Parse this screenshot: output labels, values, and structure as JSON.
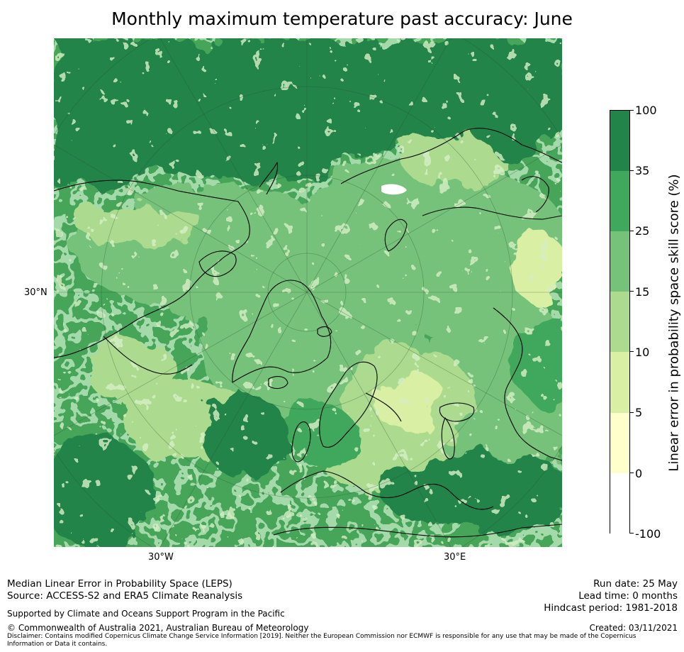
{
  "title": "Monthly maximum temperature past accuracy: June",
  "map": {
    "lat_label": "30°N",
    "lon_labels": [
      "30°W",
      "30°E"
    ]
  },
  "colorbar": {
    "label": "Linear error in probability space skill score (%)",
    "ticks": [
      "100",
      "35",
      "25",
      "15",
      "10",
      "5",
      "0",
      "-100"
    ],
    "colors": [
      "#23844a",
      "#40a85c",
      "#76c27a",
      "#acdb8f",
      "#d9efa3",
      "#ffffcc",
      "#ffffff"
    ]
  },
  "footer": {
    "line1": "Median Linear Error in Probability Space (LEPS)",
    "line2": "Source: ACCESS-S2 and ERA5 Climate Reanalysis",
    "support": "Supported by Climate and Oceans Support Program in the Pacific",
    "copyright": "© Commonwealth of Australia 2021, Australian Bureau of Meteorology",
    "disclaimer": "Disclaimer: Contains modified Copernicus Climate Change Service Information [2019]. Neither the European Commission nor ECMWF is responsible for any use that may be made of the Copernicus Information or Data it contains.",
    "run_date": "Run date: 25 May",
    "lead_time": "Lead time: 0 months",
    "hindcast": "Hindcast period: 1981-2018",
    "created": "Created: 03/11/2021"
  }
}
